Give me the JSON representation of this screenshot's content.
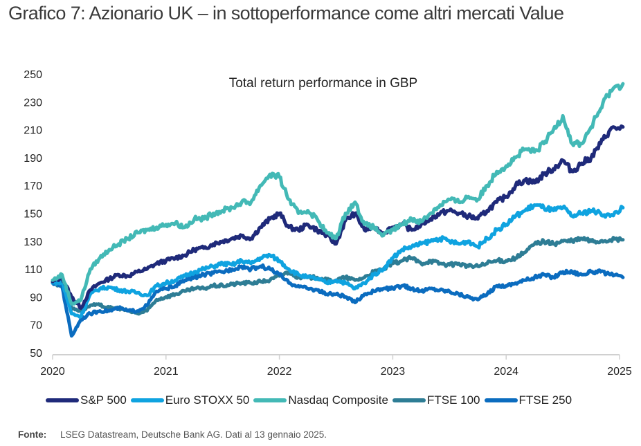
{
  "header": {
    "title": "Grafico 7: Azionario UK – in sottoperformance come altri mercati Value"
  },
  "footer": {
    "source_label": "Fonte:",
    "source_text": "LSEG Datastream, Deutsche Bank AG. Dati al 13 gennaio 2025."
  },
  "chart_data": {
    "type": "line",
    "title": "Total return performance in GBP",
    "xlabel": "",
    "ylabel": "",
    "xlim": [
      2020,
      2025
    ],
    "ylim": [
      50,
      250
    ],
    "grid": false,
    "legend_position": "bottom",
    "x_ticks": [
      "2020",
      "2021",
      "2022",
      "2023",
      "2024",
      "2025"
    ],
    "y_ticks": [
      "50",
      "70",
      "90",
      "110",
      "130",
      "150",
      "170",
      "190",
      "210",
      "230",
      "250"
    ],
    "x": [
      2020.0,
      2020.083,
      2020.167,
      2020.25,
      2020.333,
      2020.417,
      2020.5,
      2020.583,
      2020.667,
      2020.75,
      2020.833,
      2020.917,
      2021.0,
      2021.083,
      2021.167,
      2021.25,
      2021.333,
      2021.417,
      2021.5,
      2021.583,
      2021.667,
      2021.75,
      2021.833,
      2021.917,
      2022.0,
      2022.083,
      2022.167,
      2022.25,
      2022.333,
      2022.417,
      2022.5,
      2022.583,
      2022.667,
      2022.75,
      2022.833,
      2022.917,
      2023.0,
      2023.083,
      2023.167,
      2023.25,
      2023.333,
      2023.417,
      2023.5,
      2023.583,
      2023.667,
      2023.75,
      2023.833,
      2023.917,
      2024.0,
      2024.083,
      2024.167,
      2024.25,
      2024.333,
      2024.417,
      2024.5,
      2024.583,
      2024.667,
      2024.75,
      2024.833,
      2024.917,
      2025.03
    ],
    "series": [
      {
        "name": "S&P 500",
        "color": "#1f2a7a",
        "values": [
          101,
          104,
          90,
          82,
          95,
          100,
          103,
          106,
          105,
          108,
          110,
          114,
          116,
          118,
          120,
          124,
          125,
          128,
          130,
          132,
          134,
          132,
          140,
          146,
          150,
          140,
          138,
          142,
          138,
          134,
          128,
          145,
          150,
          138,
          140,
          136,
          140,
          142,
          138,
          142,
          146,
          150,
          152,
          150,
          148,
          146,
          152,
          158,
          162,
          170,
          174,
          172,
          178,
          182,
          188,
          180,
          186,
          190,
          200,
          210,
          212
        ]
      },
      {
        "name": "Euro STOXX 50",
        "color": "#0fa3e0",
        "values": [
          100,
          101,
          78,
          76,
          92,
          96,
          97,
          95,
          94,
          93,
          91,
          98,
          100,
          102,
          105,
          108,
          110,
          112,
          114,
          113,
          116,
          114,
          118,
          120,
          116,
          110,
          106,
          104,
          103,
          100,
          102,
          100,
          96,
          100,
          106,
          110,
          118,
          124,
          126,
          128,
          130,
          132,
          130,
          128,
          130,
          126,
          132,
          138,
          142,
          148,
          152,
          156,
          154,
          152,
          154,
          148,
          150,
          152,
          150,
          148,
          154
        ]
      },
      {
        "name": "Nasdaq Composite",
        "color": "#43b9b6",
        "values": [
          102,
          106,
          85,
          88,
          110,
          118,
          124,
          128,
          132,
          136,
          138,
          140,
          142,
          143,
          140,
          146,
          146,
          150,
          152,
          154,
          158,
          158,
          170,
          178,
          176,
          160,
          150,
          152,
          146,
          136,
          132,
          150,
          158,
          142,
          140,
          134,
          138,
          142,
          146,
          144,
          150,
          156,
          160,
          158,
          162,
          160,
          170,
          180,
          184,
          190,
          196,
          194,
          200,
          210,
          220,
          200,
          200,
          212,
          225,
          238,
          243
        ]
      },
      {
        "name": "FTSE 100",
        "color": "#2e7d95",
        "values": [
          100,
          98,
          82,
          80,
          84,
          84,
          82,
          82,
          80,
          78,
          80,
          88,
          90,
          92,
          94,
          96,
          96,
          98,
          98,
          99,
          100,
          100,
          101,
          102,
          105,
          108,
          104,
          104,
          104,
          102,
          102,
          104,
          102,
          104,
          108,
          110,
          114,
          116,
          118,
          114,
          116,
          114,
          113,
          114,
          112,
          112,
          114,
          116,
          116,
          118,
          122,
          128,
          130,
          128,
          130,
          130,
          132,
          130,
          130,
          131,
          131
        ]
      },
      {
        "name": "FTSE 250",
        "color": "#0b6cbf",
        "values": [
          100,
          98,
          62,
          74,
          78,
          80,
          80,
          82,
          80,
          80,
          84,
          94,
          96,
          98,
          102,
          104,
          106,
          107,
          108,
          110,
          112,
          110,
          112,
          110,
          106,
          100,
          98,
          96,
          95,
          92,
          92,
          90,
          86,
          92,
          94,
          96,
          96,
          98,
          96,
          94,
          96,
          95,
          94,
          92,
          90,
          88,
          92,
          98,
          98,
          100,
          102,
          104,
          106,
          104,
          108,
          108,
          106,
          108,
          108,
          106,
          104
        ]
      }
    ]
  }
}
